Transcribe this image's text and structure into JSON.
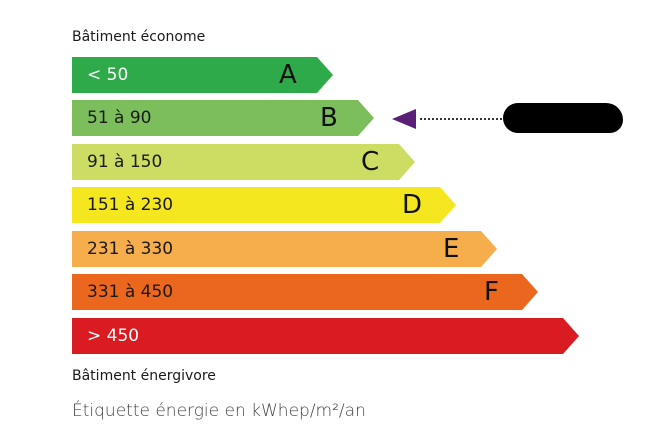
{
  "header": {
    "top_caption": "Bâtiment économe",
    "bottom_caption": "Bâtiment énergivore"
  },
  "footer": {
    "unit_text": "Étiquette énergie en kWhep/m²/an"
  },
  "classes": [
    {
      "letter": "A",
      "range": "< 50",
      "color": "#2eaa4a",
      "text_color": "#ffffff"
    },
    {
      "letter": "B",
      "range": "51 à 90",
      "color": "#7cbd5c",
      "text_color": "#1a1a1a"
    },
    {
      "letter": "C",
      "range": "91 à 150",
      "color": "#cddc63",
      "text_color": "#1a1a1a"
    },
    {
      "letter": "D",
      "range": "151 à 230",
      "color": "#f4e720",
      "text_color": "#1a1a1a"
    },
    {
      "letter": "E",
      "range": "231 à 330",
      "color": "#f6ad4c",
      "text_color": "#1a1a1a"
    },
    {
      "letter": "F",
      "range": "331 à 450",
      "color": "#eb671e",
      "text_color": "#1a1a1a"
    },
    {
      "letter": "",
      "range": "> 450",
      "color": "#d91b22",
      "text_color": "#ffffff"
    }
  ],
  "indicator": {
    "class": "B",
    "color": "#5b1f78"
  }
}
